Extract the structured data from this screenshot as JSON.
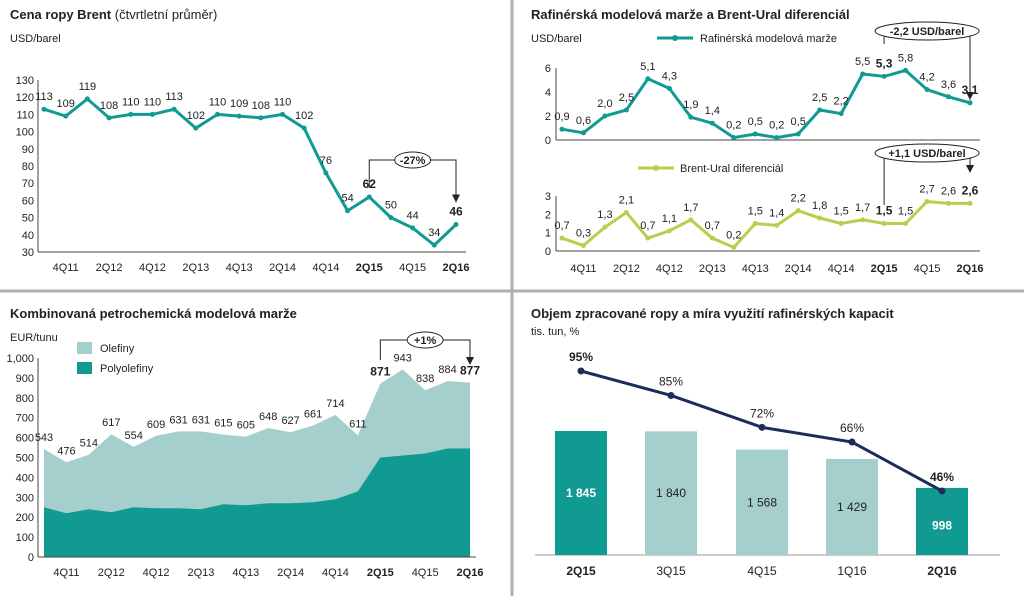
{
  "colors": {
    "teal": "#119a91",
    "light_teal": "#a4cfcc",
    "lime": "#b7cf4c",
    "navy": "#1b2e5a",
    "divider": "#b0b0b0",
    "text": "#222222"
  },
  "chart_data": [
    {
      "id": "brent",
      "type": "line",
      "title": "Cena ropy Brent",
      "title_suffix": "(čtvrtletní průměr)",
      "unit": "USD/barel",
      "ylim": [
        30,
        130
      ],
      "yticks": [
        30,
        40,
        50,
        60,
        70,
        80,
        90,
        100,
        110,
        120,
        130
      ],
      "x_tick_labels": [
        "4Q11",
        "2Q12",
        "4Q12",
        "2Q13",
        "4Q13",
        "2Q14",
        "4Q14",
        "2Q15",
        "4Q15",
        "2Q16"
      ],
      "bold_ticks": [
        "2Q15",
        "2Q16"
      ],
      "values": [
        113,
        109,
        119,
        108,
        110,
        110,
        113,
        102,
        110,
        109,
        108,
        110,
        102,
        76,
        54,
        62,
        50,
        44,
        34,
        46
      ],
      "bold_indices": [
        15,
        19
      ],
      "annotation": "-27%"
    },
    {
      "id": "refining",
      "type": "line",
      "title": "Rafinérská modelová marže a Brent-Ural diferenciál",
      "unit": "USD/barel",
      "x_tick_labels": [
        "4Q11",
        "2Q12",
        "4Q12",
        "2Q13",
        "4Q13",
        "2Q14",
        "4Q14",
        "2Q15",
        "4Q15",
        "2Q16"
      ],
      "bold_ticks": [
        "2Q15",
        "2Q16"
      ],
      "series": [
        {
          "name": "Rafinérská modelová marže",
          "ylim": [
            0,
            6
          ],
          "yticks": [
            0,
            2,
            4,
            6
          ],
          "values": [
            0.9,
            0.6,
            2.0,
            2.5,
            5.1,
            4.3,
            1.9,
            1.4,
            0.2,
            0.5,
            0.2,
            0.5,
            2.5,
            2.2,
            5.5,
            5.3,
            5.8,
            4.2,
            3.6,
            3.1
          ],
          "labels": [
            "0,9",
            "0,6",
            "2,0",
            "2,5",
            "5,1",
            "4,3",
            "1,9",
            "1,4",
            "0,2",
            "0,5",
            "0,2",
            "0,5",
            "2,5",
            "2,2",
            "5,5",
            "5,3",
            "5,8",
            "4,2",
            "3,6",
            "3,1"
          ],
          "bold_indices": [
            15,
            19
          ],
          "annotation": "-2,2 USD/barel"
        },
        {
          "name": "Brent-Ural diferenciál",
          "ylim": [
            0,
            3
          ],
          "yticks": [
            0,
            1,
            2,
            3
          ],
          "values": [
            0.7,
            0.3,
            1.3,
            2.1,
            0.7,
            1.1,
            1.7,
            0.7,
            0.2,
            1.5,
            1.4,
            2.2,
            1.8,
            1.5,
            1.7,
            1.5,
            1.5,
            2.7,
            2.6,
            2.6
          ],
          "labels": [
            "0,7",
            "0,3",
            "1,3",
            "2,1",
            "0,7",
            "1,1",
            "1,7",
            "0,7",
            "0,2",
            "1,5",
            "1,4",
            "2,2",
            "1,8",
            "1,5",
            "1,7",
            "1,5",
            "1,5",
            "2,7",
            "2,6",
            "2,6"
          ],
          "bold_indices": [
            15,
            19
          ],
          "annotation": "+1,1 USD/barel"
        }
      ]
    },
    {
      "id": "petchem",
      "type": "area",
      "title": "Kombinovaná petrochemická modelová marže",
      "unit": "EUR/tunu",
      "ylim": [
        0,
        1000
      ],
      "yticks": [
        0,
        100,
        200,
        300,
        400,
        500,
        600,
        700,
        800,
        900,
        1000
      ],
      "ytick_labels": [
        "0",
        "100",
        "200",
        "300",
        "400",
        "500",
        "600",
        "700",
        "800",
        "900",
        "1,000"
      ],
      "x_tick_labels": [
        "4Q11",
        "2Q12",
        "4Q12",
        "2Q13",
        "4Q13",
        "2Q14",
        "4Q14",
        "2Q15",
        "4Q15",
        "2Q16"
      ],
      "bold_ticks": [
        "2Q15",
        "2Q16"
      ],
      "series": [
        {
          "name": "Olefiny",
          "note": "total (olefiny + polyolefiny)",
          "values": [
            543,
            476,
            514,
            617,
            554,
            609,
            631,
            631,
            615,
            605,
            648,
            627,
            661,
            714,
            611,
            871,
            943,
            838,
            884,
            877
          ]
        },
        {
          "name": "Polyolefiny",
          "values": [
            250,
            220,
            240,
            225,
            250,
            245,
            245,
            240,
            265,
            260,
            270,
            270,
            275,
            290,
            330,
            500,
            510,
            520,
            545,
            545
          ]
        }
      ],
      "totals_labels": [
        "543",
        "476",
        "514",
        "617",
        "554",
        "609",
        "631",
        "631",
        "615",
        "605",
        "648",
        "627",
        "661",
        "714",
        "611",
        "871",
        "943",
        "838",
        "884",
        "877"
      ],
      "bold_indices": [
        15,
        19
      ],
      "annotation": "+1%"
    },
    {
      "id": "throughput",
      "type": "bar",
      "title": "Objem zpracované ropy a míra využití rafinérských kapacit",
      "unit": "tis. tun, %",
      "categories": [
        "2Q15",
        "3Q15",
        "4Q15",
        "1Q16",
        "2Q16"
      ],
      "bold_categories": [
        "2Q15",
        "2Q16"
      ],
      "values": [
        1845,
        1840,
        1568,
        1429,
        998
      ],
      "value_labels": [
        "1 845",
        "1 840",
        "1 568",
        "1 429",
        "998"
      ],
      "utilization": [
        95,
        85,
        72,
        66,
        46
      ],
      "utilization_labels": [
        "95%",
        "85%",
        "72%",
        "66%",
        "46%"
      ],
      "highlight": [
        true,
        false,
        false,
        false,
        true
      ]
    }
  ]
}
